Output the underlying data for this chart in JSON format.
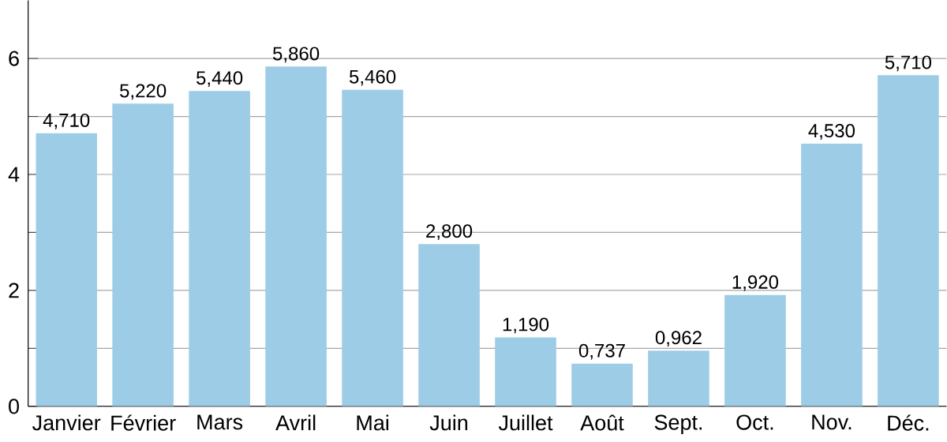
{
  "chart_data": {
    "type": "bar",
    "categories": [
      "Janvier",
      "Février",
      "Mars",
      "Avril",
      "Mai",
      "Juin",
      "Juillet",
      "Août",
      "Sept.",
      "Oct.",
      "Nov.",
      "Déc."
    ],
    "values": [
      4.71,
      5.22,
      5.44,
      5.86,
      5.46,
      2.8,
      1.19,
      0.737,
      0.962,
      1.92,
      4.53,
      5.71
    ],
    "value_labels": [
      "4,710",
      "5,220",
      "5,440",
      "5,860",
      "5,460",
      "2,800",
      "1,190",
      "0,737",
      "0,962",
      "1,920",
      "4,530",
      "5,710"
    ],
    "color": "#9dcde6",
    "ylim": [
      0,
      7
    ],
    "yticks": [
      0,
      {
        "value": 1,
        "label": null
      },
      2,
      {
        "value": 3,
        "label": null
      },
      4,
      {
        "value": 5,
        "label": null
      },
      6
    ],
    "grid": "y"
  }
}
